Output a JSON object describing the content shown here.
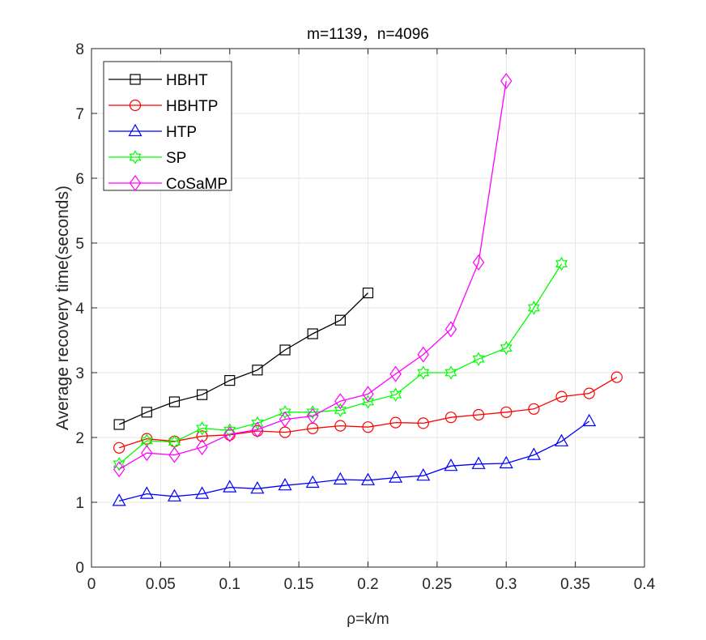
{
  "chart_data": {
    "type": "line",
    "title": "m=1139，n=4096",
    "xlabel": "ρ=k/m",
    "ylabel": "Average recovery time(seconds)",
    "xlim": [
      0,
      0.4
    ],
    "ylim": [
      0,
      8
    ],
    "xticks": [
      0,
      0.05,
      0.1,
      0.15,
      0.2,
      0.25,
      0.3,
      0.35,
      0.4
    ],
    "xtick_labels": [
      "0",
      "0.05",
      "0.1",
      "0.15",
      "0.2",
      "0.25",
      "0.3",
      "0.35",
      "0.4"
    ],
    "yticks": [
      0,
      1,
      2,
      3,
      4,
      5,
      6,
      7,
      8
    ],
    "ytick_labels": [
      "0",
      "1",
      "2",
      "3",
      "4",
      "5",
      "6",
      "7",
      "8"
    ],
    "grid": true,
    "legend_position": "top-left",
    "series": [
      {
        "name": "HBHT",
        "color": "#000000",
        "marker": "square",
        "x": [
          0.02,
          0.04,
          0.06,
          0.08,
          0.1,
          0.12,
          0.14,
          0.16,
          0.18,
          0.2
        ],
        "y": [
          2.2,
          2.39,
          2.55,
          2.66,
          2.88,
          3.04,
          3.35,
          3.6,
          3.81,
          4.23
        ]
      },
      {
        "name": "HBHTP",
        "color": "#ff0000",
        "marker": "circle",
        "x": [
          0.02,
          0.04,
          0.06,
          0.08,
          0.1,
          0.12,
          0.14,
          0.16,
          0.18,
          0.2,
          0.22,
          0.24,
          0.26,
          0.28,
          0.3,
          0.32,
          0.34,
          0.36,
          0.38
        ],
        "y": [
          1.84,
          1.98,
          1.94,
          2.02,
          2.04,
          2.1,
          2.08,
          2.14,
          2.18,
          2.16,
          2.23,
          2.22,
          2.31,
          2.35,
          2.39,
          2.44,
          2.63,
          2.68,
          2.93
        ]
      },
      {
        "name": "HTP",
        "color": "#0000ff",
        "marker": "triangle",
        "x": [
          0.02,
          0.04,
          0.06,
          0.08,
          0.1,
          0.12,
          0.14,
          0.16,
          0.18,
          0.2,
          0.22,
          0.24,
          0.26,
          0.28,
          0.3,
          0.32,
          0.34,
          0.36
        ],
        "y": [
          1.02,
          1.13,
          1.09,
          1.13,
          1.23,
          1.21,
          1.26,
          1.3,
          1.35,
          1.34,
          1.38,
          1.41,
          1.56,
          1.59,
          1.6,
          1.73,
          1.94,
          2.25
        ]
      },
      {
        "name": "SP",
        "color": "#00ff00",
        "marker": "hexagram",
        "x": [
          0.02,
          0.04,
          0.06,
          0.08,
          0.1,
          0.12,
          0.14,
          0.16,
          0.18,
          0.2,
          0.22,
          0.24,
          0.26,
          0.28,
          0.3,
          0.32,
          0.34
        ],
        "y": [
          1.59,
          1.95,
          1.93,
          2.14,
          2.11,
          2.22,
          2.39,
          2.39,
          2.42,
          2.55,
          2.66,
          3.0,
          3.0,
          3.21,
          3.38,
          4.0,
          4.68
        ]
      },
      {
        "name": "CoSaMP",
        "color": "#ff00ff",
        "marker": "diamond",
        "x": [
          0.02,
          0.04,
          0.06,
          0.08,
          0.1,
          0.12,
          0.14,
          0.16,
          0.18,
          0.2,
          0.22,
          0.24,
          0.26,
          0.28,
          0.3
        ],
        "y": [
          1.51,
          1.76,
          1.73,
          1.85,
          2.05,
          2.12,
          2.28,
          2.33,
          2.56,
          2.67,
          2.98,
          3.28,
          3.67,
          4.7,
          7.5
        ]
      }
    ]
  }
}
